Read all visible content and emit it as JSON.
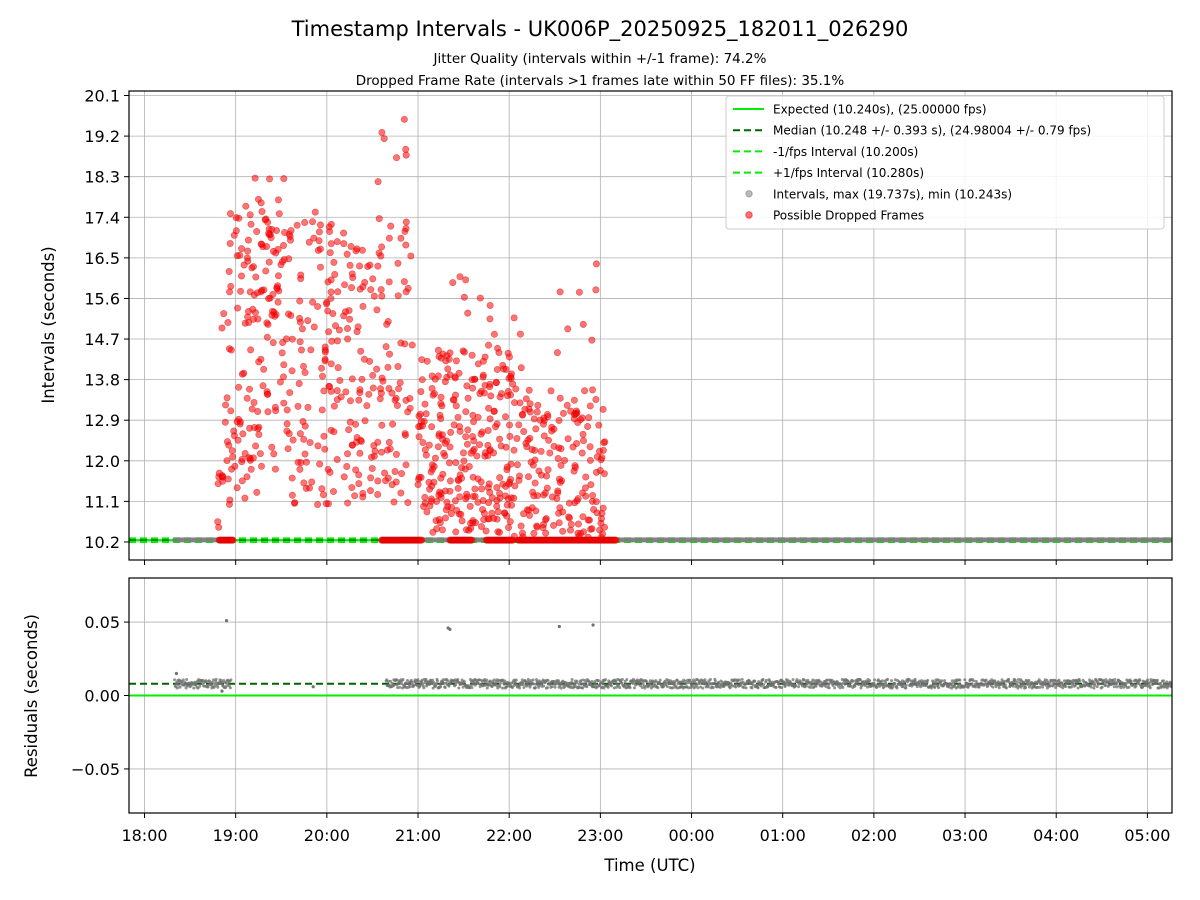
{
  "chart_data": {
    "type": "scatter",
    "title": "Timestamp Intervals - UK006P_20250925_182011_026290",
    "subtitle_1": "Jitter Quality (intervals within +/-1 frame): 74.2%",
    "subtitle_2": "Dropped Frame Rate (intervals >1 frames late within 50 FF files): 35.1%",
    "xlabel": "Time (UTC)",
    "x_unit": "hours since 18:00 UTC (25 = 01:00 next day)",
    "xlim": [
      17.83,
      29.27
    ],
    "x_ticks": [
      {
        "value": 18,
        "label": "18:00"
      },
      {
        "value": 19,
        "label": "19:00"
      },
      {
        "value": 20,
        "label": "20:00"
      },
      {
        "value": 21,
        "label": "21:00"
      },
      {
        "value": 22,
        "label": "22:00"
      },
      {
        "value": 23,
        "label": "23:00"
      },
      {
        "value": 24,
        "label": "00:00"
      },
      {
        "value": 25,
        "label": "01:00"
      },
      {
        "value": 26,
        "label": "02:00"
      },
      {
        "value": 27,
        "label": "03:00"
      },
      {
        "value": 28,
        "label": "04:00"
      },
      {
        "value": 29,
        "label": "05:00"
      }
    ],
    "top_panel": {
      "ylabel": "Intervals (seconds)",
      "ylim": [
        9.8,
        20.2
      ],
      "y_ticks": [
        "10.2",
        "11.1",
        "12.0",
        "12.9",
        "13.8",
        "14.7",
        "15.6",
        "16.5",
        "17.4",
        "18.3",
        "19.2",
        "20.1"
      ],
      "expected": 10.24,
      "median": 10.248,
      "minus_fps": 10.2,
      "plus_fps": 10.28,
      "legend": [
        {
          "label": "Expected (10.240s), (25.00000 fps)",
          "style": "solid",
          "color": "#00ee00"
        },
        {
          "label": "Median (10.248 +/- 0.393 s), (24.98004 +/- 0.79 fps)",
          "style": "dashed",
          "color": "#006400"
        },
        {
          "label": "-1/fps Interval (10.200s)",
          "style": "dashed",
          "color": "#00ee00"
        },
        {
          "label": "+1/fps Interval (10.280s)",
          "style": "dashed",
          "color": "#00ee00"
        },
        {
          "label": "Intervals, max (19.737s), min (10.243s)",
          "style": "marker",
          "color": "#808080"
        },
        {
          "label": "Possible Dropped Frames",
          "style": "marker",
          "color": "#ff0000"
        }
      ],
      "normal_interval_ranges": [
        [
          18.33,
          18.95
        ],
        [
          20.65,
          29.27
        ]
      ],
      "dropped_frames": {
        "note": "approximate density clusters read from plot; [x_start, x_end, y_min, y_max, count, seed]",
        "clusters": [
          [
            18.78,
            18.86,
            10.5,
            12.2,
            8,
            1
          ],
          [
            18.85,
            20.05,
            11.0,
            17.6,
            220,
            2
          ],
          [
            19.05,
            19.55,
            15.0,
            18.3,
            40,
            3
          ],
          [
            20.0,
            20.9,
            11.0,
            17.4,
            150,
            4
          ],
          [
            20.5,
            20.95,
            11.5,
            19.7,
            30,
            5
          ],
          [
            21.0,
            22.05,
            10.4,
            14.5,
            260,
            6
          ],
          [
            21.3,
            21.9,
            13.5,
            16.2,
            15,
            7
          ],
          [
            22.05,
            23.05,
            10.3,
            13.6,
            170,
            8
          ],
          [
            22.05,
            22.15,
            13.0,
            15.5,
            6,
            9
          ],
          [
            22.5,
            23.05,
            10.4,
            16.7,
            12,
            10
          ]
        ],
        "baseline_ranges": [
          [
            18.82,
            18.98
          ],
          [
            20.6,
            21.05
          ],
          [
            21.35,
            21.6
          ],
          [
            21.75,
            22.05
          ],
          [
            22.1,
            23.18
          ]
        ],
        "baseline_value": 10.24
      }
    },
    "bottom_panel": {
      "ylabel": "Residuals (seconds)",
      "ylim": [
        -0.08,
        0.08
      ],
      "y_ticks": [
        {
          "value": 0.05,
          "label": "0.05"
        },
        {
          "value": 0.0,
          "label": "0.00"
        },
        {
          "value": -0.05,
          "label": "−0.05"
        }
      ],
      "expected": 0.0,
      "median": 0.008,
      "residual_band": [
        0.005,
        0.011
      ],
      "outliers": [
        [
          18.35,
          0.015
        ],
        [
          18.9,
          0.051
        ],
        [
          21.33,
          0.046
        ],
        [
          21.35,
          0.045
        ],
        [
          22.55,
          0.047
        ],
        [
          22.92,
          0.048
        ],
        [
          18.85,
          0.003
        ],
        [
          19.85,
          0.006
        ]
      ]
    }
  }
}
